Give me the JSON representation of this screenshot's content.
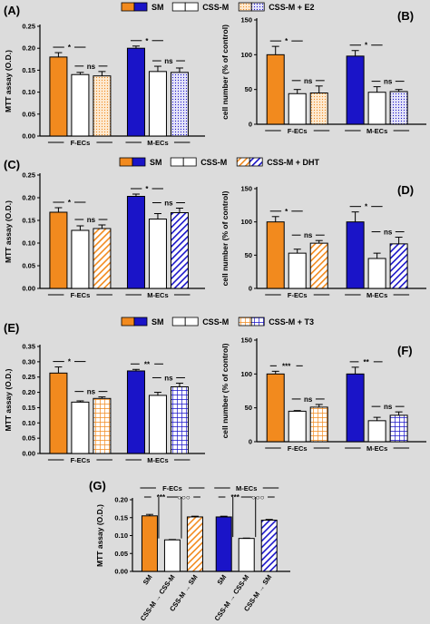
{
  "colors": {
    "female": "#f28a1e",
    "male": "#1a14c8",
    "cssm": "#ffffff",
    "axis": "#000000",
    "background": "#dcdcdc"
  },
  "legends": [
    {
      "labels": [
        "SM",
        "CSS-M",
        "CSS-M + E2"
      ]
    },
    {
      "labels": [
        "SM",
        "CSS-M",
        "CSS-M + DHT"
      ]
    },
    {
      "labels": [
        "SM",
        "CSS-M",
        "CSS-M + T3"
      ]
    }
  ],
  "chart_data": [
    {
      "type": "bar",
      "panel": "(A)",
      "ylabel": "MTT assay (O.D.)",
      "ylim": [
        0,
        0.25
      ],
      "yticks": [
        "0.00",
        "0.05",
        "0.10",
        "0.15",
        "0.20",
        "0.25"
      ],
      "groups": [
        "F-ECs",
        "M-ECs"
      ],
      "pattern": "dots",
      "series": [
        {
          "name": "SM",
          "values": [
            0.18,
            0.2
          ],
          "err": [
            0.01,
            0.005
          ]
        },
        {
          "name": "CSS-M",
          "values": [
            0.14,
            0.147
          ],
          "err": [
            0.005,
            0.012
          ]
        },
        {
          "name": "CSS-M + E2",
          "values": [
            0.137,
            0.145
          ],
          "err": [
            0.01,
            0.01
          ]
        }
      ],
      "sig": [
        {
          "group": 0,
          "pair": [
            0,
            1
          ],
          "label": "*"
        },
        {
          "group": 0,
          "pair": [
            1,
            2
          ],
          "label": "ns"
        },
        {
          "group": 1,
          "pair": [
            0,
            1
          ],
          "label": "*"
        },
        {
          "group": 1,
          "pair": [
            1,
            2
          ],
          "label": "ns"
        }
      ]
    },
    {
      "type": "bar",
      "panel": "(B)",
      "ylabel": "cell number (% of control)",
      "ylim": [
        0,
        150
      ],
      "yticks": [
        "0",
        "50",
        "100",
        "150"
      ],
      "groups": [
        "F-ECs",
        "M-ECs"
      ],
      "pattern": "dots",
      "series": [
        {
          "name": "SM",
          "values": [
            100,
            98
          ],
          "err": [
            12,
            8
          ]
        },
        {
          "name": "CSS-M",
          "values": [
            44,
            46
          ],
          "err": [
            6,
            8
          ]
        },
        {
          "name": "CSS-M + E2",
          "values": [
            45,
            47
          ],
          "err": [
            10,
            3
          ]
        }
      ],
      "sig": [
        {
          "group": 0,
          "pair": [
            0,
            1
          ],
          "label": "*"
        },
        {
          "group": 0,
          "pair": [
            1,
            2
          ],
          "label": "ns"
        },
        {
          "group": 1,
          "pair": [
            0,
            1
          ],
          "label": "*"
        },
        {
          "group": 1,
          "pair": [
            1,
            2
          ],
          "label": "ns"
        }
      ]
    },
    {
      "type": "bar",
      "panel": "(C)",
      "ylabel": "MTT assay (O.D.)",
      "ylim": [
        0,
        0.25
      ],
      "yticks": [
        "0.00",
        "0.05",
        "0.10",
        "0.15",
        "0.20",
        "0.25"
      ],
      "groups": [
        "F-ECs",
        "M-ECs"
      ],
      "pattern": "diagonal",
      "series": [
        {
          "name": "SM",
          "values": [
            0.168,
            0.203
          ],
          "err": [
            0.01,
            0.005
          ]
        },
        {
          "name": "CSS-M",
          "values": [
            0.128,
            0.153
          ],
          "err": [
            0.01,
            0.012
          ]
        },
        {
          "name": "CSS-M + DHT",
          "values": [
            0.132,
            0.167
          ],
          "err": [
            0.008,
            0.01
          ]
        }
      ],
      "sig": [
        {
          "group": 0,
          "pair": [
            0,
            1
          ],
          "label": "*"
        },
        {
          "group": 0,
          "pair": [
            1,
            2
          ],
          "label": "ns"
        },
        {
          "group": 1,
          "pair": [
            0,
            1
          ],
          "label": "*"
        },
        {
          "group": 1,
          "pair": [
            1,
            2
          ],
          "label": "ns"
        }
      ]
    },
    {
      "type": "bar",
      "panel": "(D)",
      "ylabel": "cell number (% of control)",
      "ylim": [
        0,
        150
      ],
      "yticks": [
        "0",
        "50",
        "100",
        "150"
      ],
      "groups": [
        "F-ECs",
        "M-ECs"
      ],
      "pattern": "diagonal",
      "series": [
        {
          "name": "SM",
          "values": [
            100,
            100
          ],
          "err": [
            8,
            15
          ]
        },
        {
          "name": "CSS-M",
          "values": [
            53,
            45
          ],
          "err": [
            6,
            8
          ]
        },
        {
          "name": "CSS-M + DHT",
          "values": [
            68,
            67
          ],
          "err": [
            4,
            10
          ]
        }
      ],
      "sig": [
        {
          "group": 0,
          "pair": [
            0,
            1
          ],
          "label": "*"
        },
        {
          "group": 0,
          "pair": [
            1,
            2
          ],
          "label": "ns"
        },
        {
          "group": 1,
          "pair": [
            0,
            1
          ],
          "label": "*"
        },
        {
          "group": 1,
          "pair": [
            1,
            2
          ],
          "label": "ns"
        }
      ]
    },
    {
      "type": "bar",
      "panel": "(E)",
      "ylabel": "MTT assay (O.D.)",
      "ylim": [
        0,
        0.35
      ],
      "yticks": [
        "0.00",
        "0.05",
        "0.10",
        "0.15",
        "0.20",
        "0.25",
        "0.30",
        "0.35"
      ],
      "groups": [
        "F-ECs",
        "M-ECs"
      ],
      "pattern": "grid",
      "series": [
        {
          "name": "SM",
          "values": [
            0.263,
            0.27
          ],
          "err": [
            0.02,
            0.005
          ]
        },
        {
          "name": "CSS-M",
          "values": [
            0.168,
            0.19
          ],
          "err": [
            0.004,
            0.01
          ]
        },
        {
          "name": "CSS-M + T3",
          "values": [
            0.18,
            0.218
          ],
          "err": [
            0.005,
            0.012
          ]
        }
      ],
      "sig": [
        {
          "group": 0,
          "pair": [
            0,
            1
          ],
          "label": "*"
        },
        {
          "group": 0,
          "pair": [
            1,
            2
          ],
          "label": "ns"
        },
        {
          "group": 1,
          "pair": [
            0,
            1
          ],
          "label": "**"
        },
        {
          "group": 1,
          "pair": [
            1,
            2
          ],
          "label": "ns"
        }
      ]
    },
    {
      "type": "bar",
      "panel": "(F)",
      "ylabel": "cell number (% of control)",
      "ylim": [
        0,
        150
      ],
      "yticks": [
        "0",
        "50",
        "100",
        "150"
      ],
      "groups": [
        "F-ECs",
        "M-ECs"
      ],
      "pattern": "grid",
      "series": [
        {
          "name": "SM",
          "values": [
            100,
            100
          ],
          "err": [
            4,
            10
          ]
        },
        {
          "name": "CSS-M",
          "values": [
            45,
            31
          ],
          "err": [
            1,
            5
          ]
        },
        {
          "name": "CSS-M + T3",
          "values": [
            51,
            39
          ],
          "err": [
            4,
            5
          ]
        }
      ],
      "sig": [
        {
          "group": 0,
          "pair": [
            0,
            1
          ],
          "label": "***"
        },
        {
          "group": 0,
          "pair": [
            1,
            2
          ],
          "label": "ns"
        },
        {
          "group": 1,
          "pair": [
            0,
            1
          ],
          "label": "**"
        },
        {
          "group": 1,
          "pair": [
            1,
            2
          ],
          "label": "ns"
        }
      ]
    },
    {
      "type": "bar",
      "panel": "(G)",
      "ylabel": "MTT assay (O.D.)",
      "ylim": [
        0,
        0.2
      ],
      "yticks": [
        "0.00",
        "0.05",
        "0.10",
        "0.15",
        "0.20"
      ],
      "groups": [
        "F-ECs",
        "M-ECs"
      ],
      "pattern": "diagonal",
      "categories": [
        "SM",
        "CSS-M → CSS-M",
        "CSS-M → SM",
        "SM",
        "CSS-M → CSS-M",
        "CSS-M → SM"
      ],
      "values": [
        0.155,
        0.088,
        0.152,
        0.152,
        0.092,
        0.143
      ],
      "err": [
        0.004,
        0.001,
        0.002,
        0.002,
        0.001,
        0.002
      ],
      "sig": [
        {
          "group": 0,
          "pair": [
            0,
            1
          ],
          "label": "***"
        },
        {
          "group": 0,
          "pair": [
            1,
            2
          ],
          "label": "○○○"
        },
        {
          "group": 1,
          "pair": [
            0,
            1
          ],
          "label": "***"
        },
        {
          "group": 1,
          "pair": [
            1,
            2
          ],
          "label": "○○○"
        }
      ]
    }
  ]
}
